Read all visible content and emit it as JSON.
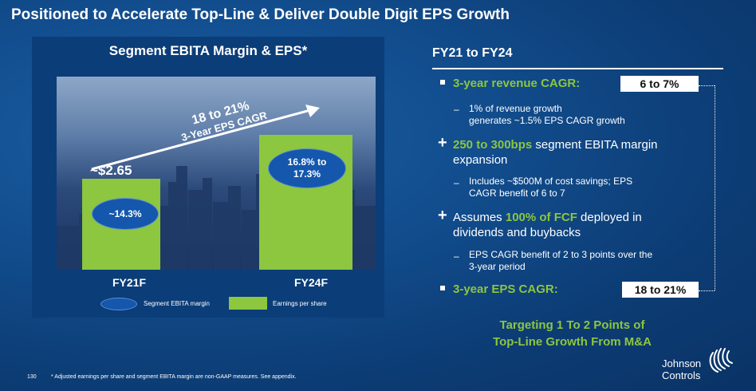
{
  "slide": {
    "title": "Positioned to Accelerate Top-Line & Deliver Double Digit EPS Growth",
    "page_number": "130",
    "footnote": "* Adjusted earnings per share and segment EBITA margin are non-GAAP measures. See appendix.",
    "logo": {
      "line1": "Johnson",
      "line2": "Controls",
      "icon": "swirl-logo-icon"
    }
  },
  "left": {
    "header": "Segment EBITA Margin & EPS*",
    "cagr_line1": "18 to 21%",
    "cagr_line2": "3-Year EPS CAGR",
    "legend": {
      "margin": "Segment EBITA margin",
      "eps": "Earnings per share"
    }
  },
  "chart_data": {
    "type": "bar",
    "categories": [
      "FY21F",
      "FY24F"
    ],
    "series": [
      {
        "name": "Earnings per share",
        "value_labels": [
          "~$2.65",
          ""
        ]
      },
      {
        "name": "Segment EBITA margin",
        "value_labels": [
          "~14.3%",
          "16.8% to 17.3%"
        ]
      }
    ],
    "oval_labels": [
      [
        "~14.3%"
      ],
      [
        "16.8% to",
        "17.3%"
      ]
    ],
    "eps_label": "~$2.65",
    "colors": {
      "eps": "#8dc63f",
      "margin": "#1457ad"
    }
  },
  "right": {
    "header": "FY21 to FY24",
    "b1": {
      "label": "3-year revenue CAGR:",
      "callout": "6 to 7%"
    },
    "b1_sub": {
      "l1": "1% of revenue growth",
      "l2": "generates ~1.5% EPS CAGR growth"
    },
    "b2": {
      "green": "250 to 300bps",
      "rest1": " segment EBITA margin",
      "rest2": "expansion"
    },
    "b2_sub": {
      "l1": "Includes ~$500M of cost savings; EPS",
      "l2": "CAGR benefit of 6 to 7"
    },
    "b3": {
      "pre": "Assumes ",
      "green": "100% of FCF",
      "rest1": " deployed in",
      "rest2": "dividends and buybacks"
    },
    "b3_sub": {
      "l1": "EPS CAGR benefit of 2 to 3 points over the",
      "l2": "3-year period"
    },
    "b4": {
      "label": "3-year EPS CAGR:",
      "callout": "18 to 21%"
    },
    "target": {
      "l1": "Targeting 1 To 2 Points of",
      "l2": "Top-Line Growth From M&A"
    }
  }
}
